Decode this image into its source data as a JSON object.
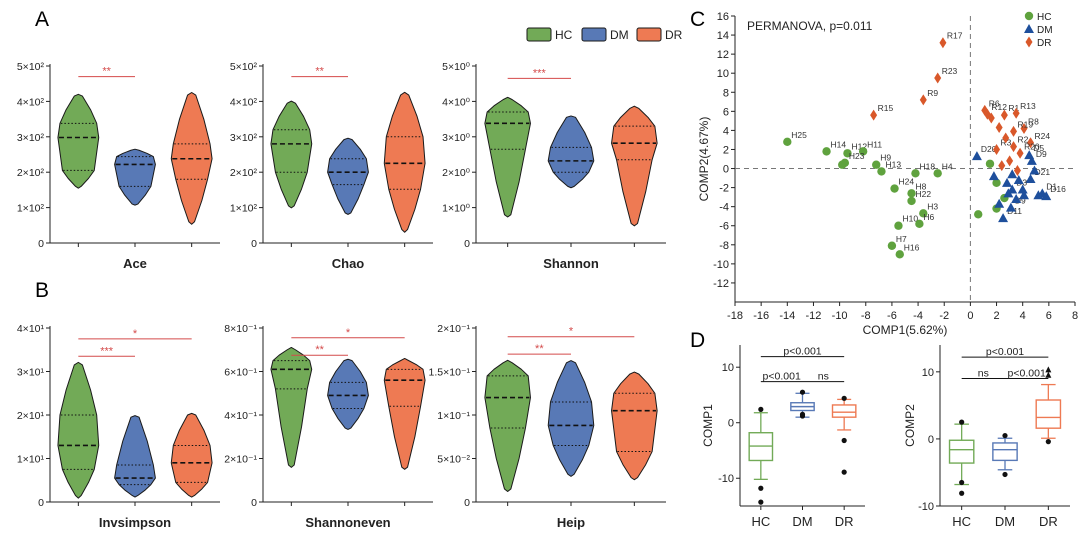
{
  "panel_letters": [
    "A",
    "B",
    "C",
    "D"
  ],
  "colors": {
    "HC": "#72aa57",
    "DM": "#5879b6",
    "DR": "#ee7a53",
    "HC_scatter": "#5fa23e",
    "DM_scatter": "#1e4f9c",
    "DR_scatter": "#d9582a",
    "sig": "#d44a4a"
  },
  "legend_A": [
    "HC",
    "DM",
    "DR"
  ],
  "chart_data": [
    {
      "type": "violin",
      "panel": "A",
      "title": "Ace",
      "yticks": [
        0,
        100,
        200,
        300,
        400,
        500
      ],
      "yticklabels": [
        "0",
        "1×10²",
        "2×10²",
        "3×10²",
        "4×10²",
        "5×10²"
      ],
      "ylim": [
        0,
        500
      ],
      "groups": [
        {
          "name": "HC",
          "min": 160,
          "q1": 205,
          "median": 298,
          "q3": 338,
          "max": 415
        },
        {
          "name": "DM",
          "min": 110,
          "q1": 160,
          "median": 222,
          "q3": 244,
          "max": 262
        },
        {
          "name": "DR",
          "min": 60,
          "q1": 180,
          "median": 238,
          "q3": 280,
          "max": 418
        }
      ],
      "significance": [
        {
          "from": 0,
          "to": 1,
          "label": "**",
          "y": 470
        }
      ]
    },
    {
      "type": "violin",
      "panel": "A",
      "title": "Chao",
      "yticks": [
        0,
        100,
        200,
        300,
        400,
        500
      ],
      "yticklabels": [
        "0",
        "1×10²",
        "2×10²",
        "3×10²",
        "4×10²",
        "5×10²"
      ],
      "ylim": [
        0,
        500
      ],
      "groups": [
        {
          "name": "HC",
          "min": 105,
          "q1": 200,
          "median": 280,
          "q3": 320,
          "max": 395
        },
        {
          "name": "DM",
          "min": 85,
          "q1": 165,
          "median": 200,
          "q3": 238,
          "max": 292
        },
        {
          "name": "DR",
          "min": 38,
          "q1": 152,
          "median": 225,
          "q3": 300,
          "max": 418
        }
      ],
      "significance": [
        {
          "from": 0,
          "to": 1,
          "label": "**",
          "y": 470
        }
      ]
    },
    {
      "type": "violin",
      "panel": "A",
      "title": "Shannon",
      "yticks": [
        0,
        1,
        2,
        3,
        4,
        5
      ],
      "yticklabels": [
        "0",
        "1×10⁰",
        "2×10⁰",
        "3×10⁰",
        "4×10⁰",
        "5×10⁰"
      ],
      "ylim": [
        0,
        5
      ],
      "groups": [
        {
          "name": "HC",
          "min": 0.8,
          "q1": 2.65,
          "median": 3.38,
          "q3": 3.7,
          "max": 4.05
        },
        {
          "name": "DM",
          "min": 1.6,
          "q1": 2.0,
          "median": 2.32,
          "q3": 2.7,
          "max": 3.55
        },
        {
          "name": "DR",
          "min": 0.55,
          "q1": 2.35,
          "median": 2.82,
          "q3": 3.3,
          "max": 3.8
        }
      ],
      "significance": [
        {
          "from": 0,
          "to": 1,
          "label": "***",
          "y": 4.65
        }
      ]
    },
    {
      "type": "violin",
      "panel": "B",
      "title": "Invsimpson",
      "yticks": [
        0,
        10,
        20,
        30,
        40
      ],
      "yticklabels": [
        "0",
        "1×10¹",
        "2×10¹",
        "3×10¹",
        "4×10¹"
      ],
      "ylim": [
        0,
        40
      ],
      "groups": [
        {
          "name": "HC",
          "min": 1.5,
          "q1": 7.5,
          "median": 13,
          "q3": 20,
          "max": 31.5
        },
        {
          "name": "DM",
          "min": 1.5,
          "q1": 4,
          "median": 5.5,
          "q3": 8.5,
          "max": 19.5
        },
        {
          "name": "DR",
          "min": 1.5,
          "q1": 4.5,
          "median": 9,
          "q3": 13,
          "max": 20
        }
      ],
      "significance": [
        {
          "from": 0,
          "to": 2,
          "label": "*",
          "y": 37.5
        },
        {
          "from": 0,
          "to": 1,
          "label": "***",
          "y": 33.5
        }
      ]
    },
    {
      "type": "violin",
      "panel": "B",
      "title": "Shannoneven",
      "yticks": [
        0,
        0.2,
        0.4,
        0.6,
        0.8
      ],
      "yticklabels": [
        "0",
        "2×10⁻¹",
        "4×10⁻¹",
        "6×10⁻¹",
        "8×10⁻¹"
      ],
      "ylim": [
        0,
        0.8
      ],
      "groups": [
        {
          "name": "HC",
          "min": 0.17,
          "q1": 0.52,
          "median": 0.61,
          "q3": 0.65,
          "max": 0.7
        },
        {
          "name": "DM",
          "min": 0.34,
          "q1": 0.43,
          "median": 0.49,
          "q3": 0.55,
          "max": 0.65
        },
        {
          "name": "DR",
          "min": 0.16,
          "q1": 0.44,
          "median": 0.56,
          "q3": 0.61,
          "max": 0.65
        }
      ],
      "significance": [
        {
          "from": 0,
          "to": 2,
          "label": "*",
          "y": 0.755
        },
        {
          "from": 0,
          "to": 1,
          "label": "**",
          "y": 0.675
        }
      ]
    },
    {
      "type": "violin",
      "panel": "B",
      "title": "Heip",
      "yticks": [
        0,
        0.05,
        0.1,
        0.15,
        0.2
      ],
      "yticklabels": [
        "0",
        "5×10⁻²",
        "1×10⁻¹",
        "1.5×10⁻¹",
        "2×10⁻¹"
      ],
      "ylim": [
        0,
        0.2
      ],
      "groups": [
        {
          "name": "HC",
          "min": 0.015,
          "q1": 0.085,
          "median": 0.12,
          "q3": 0.145,
          "max": 0.16
        },
        {
          "name": "DM",
          "min": 0.032,
          "q1": 0.065,
          "median": 0.088,
          "q3": 0.115,
          "max": 0.16
        },
        {
          "name": "DR",
          "min": 0.028,
          "q1": 0.058,
          "median": 0.105,
          "q3": 0.125,
          "max": 0.147
        }
      ],
      "significance": [
        {
          "from": 0,
          "to": 2,
          "label": "*",
          "y": 0.19
        },
        {
          "from": 0,
          "to": 1,
          "label": "**",
          "y": 0.17
        }
      ]
    },
    {
      "type": "scatter",
      "panel": "C",
      "annotation": "PERMANOVA, p=0.011",
      "xlabel": "COMP1(5.62%)",
      "ylabel": "COMP2(4.67%)",
      "xlim": [
        -18,
        8
      ],
      "ylim": [
        -14,
        16
      ],
      "xticks": [
        -18,
        -16,
        -14,
        -12,
        -10,
        -8,
        -6,
        -4,
        -2,
        0,
        2,
        4,
        6,
        8
      ],
      "yticks": [
        -12,
        -10,
        -8,
        -6,
        -4,
        -2,
        0,
        2,
        4,
        6,
        8,
        10,
        12,
        14,
        16
      ],
      "legend": [
        "HC",
        "DM",
        "DR"
      ],
      "series": [
        {
          "name": "HC",
          "points": [
            {
              "label": "H25",
              "x": -14,
              "y": 2.8
            },
            {
              "label": "H14",
              "x": -11,
              "y": 1.8
            },
            {
              "label": "H12",
              "x": -9.4,
              "y": 1.6
            },
            {
              "label": "H11",
              "x": -8.2,
              "y": 1.8
            },
            {
              "label": "H23",
              "x": -9.6,
              "y": 0.6
            },
            {
              "label": "H9",
              "x": -7.2,
              "y": 0.4
            },
            {
              "label": "H13",
              "x": -6.8,
              "y": -0.3
            },
            {
              "label": "H24",
              "x": -5.8,
              "y": -2.1
            },
            {
              "label": "H18",
              "x": -4.2,
              "y": -0.5
            },
            {
              "label": "H4",
              "x": -2.5,
              "y": -0.5
            },
            {
              "label": "H8",
              "x": -4.5,
              "y": -2.6
            },
            {
              "label": "H22",
              "x": -4.5,
              "y": -3.4
            },
            {
              "label": "H3",
              "x": -3.6,
              "y": -4.7
            },
            {
              "label": "H10",
              "x": -5.5,
              "y": -6
            },
            {
              "label": "H6",
              "x": -3.9,
              "y": -5.8
            },
            {
              "label": "H7",
              "x": -6,
              "y": -8.1
            },
            {
              "label": "H16",
              "x": -5.4,
              "y": -9
            },
            {
              "label": "",
              "x": -9.8,
              "y": 0.4
            },
            {
              "label": "",
              "x": 2.0,
              "y": -1.5
            },
            {
              "label": "",
              "x": 2.6,
              "y": -3.1
            },
            {
              "label": "",
              "x": 0.6,
              "y": -4.8
            },
            {
              "label": "",
              "x": 2.0,
              "y": -4.2
            },
            {
              "label": "",
              "x": 1.5,
              "y": 0.5
            }
          ]
        },
        {
          "name": "DM",
          "points": [
            {
              "label": "D20",
              "x": 0.5,
              "y": 1.3
            },
            {
              "label": "D5",
              "x": 4.5,
              "y": 1.4
            },
            {
              "label": "D9",
              "x": 4.7,
              "y": 0.8
            },
            {
              "label": "D21",
              "x": 4.6,
              "y": -1.1
            },
            {
              "label": "D1",
              "x": 5.5,
              "y": -2.6
            },
            {
              "label": "D16",
              "x": 5.8,
              "y": -2.9
            },
            {
              "label": "D3",
              "x": 3.2,
              "y": -2.2
            },
            {
              "label": "D11",
              "x": 2.5,
              "y": -5.2
            },
            {
              "label": "D9",
              "x": 3.1,
              "y": -4.1
            },
            {
              "label": "",
              "x": 1.8,
              "y": -0.8
            },
            {
              "label": "",
              "x": 2.8,
              "y": -1.5
            },
            {
              "label": "",
              "x": 3.2,
              "y": -0.6
            },
            {
              "label": "",
              "x": 4,
              "y": -2.2
            },
            {
              "label": "",
              "x": 3.5,
              "y": -3.2
            },
            {
              "label": "",
              "x": 2.2,
              "y": -3.7
            },
            {
              "label": "",
              "x": 4.9,
              "y": -0.2
            },
            {
              "label": "",
              "x": 5.2,
              "y": -2.8
            },
            {
              "label": "",
              "x": 2.9,
              "y": -2.6
            },
            {
              "label": "",
              "x": 4.1,
              "y": -2.8
            },
            {
              "label": "",
              "x": 3.7,
              "y": -1.2
            }
          ]
        },
        {
          "name": "DR",
          "points": [
            {
              "label": "R17",
              "x": -2.1,
              "y": 13.2
            },
            {
              "label": "R23",
              "x": -2.5,
              "y": 9.5
            },
            {
              "label": "R9",
              "x": -3.6,
              "y": 7.2
            },
            {
              "label": "R15",
              "x": -7.4,
              "y": 5.6
            },
            {
              "label": "R6",
              "x": 1.1,
              "y": 6.1
            },
            {
              "label": "R12",
              "x": 1.3,
              "y": 5.7
            },
            {
              "label": "R1",
              "x": 2.6,
              "y": 5.6
            },
            {
              "label": "R13",
              "x": 3.5,
              "y": 5.8
            },
            {
              "label": "R8",
              "x": 4.1,
              "y": 4.2
            },
            {
              "label": "R19",
              "x": 3.3,
              "y": 3.9
            },
            {
              "label": "R24",
              "x": 4.6,
              "y": 2.7
            },
            {
              "label": "R2",
              "x": 3.3,
              "y": 2.3
            },
            {
              "label": "R20",
              "x": 3.8,
              "y": 1.6
            },
            {
              "label": "R3",
              "x": 2,
              "y": 2
            },
            {
              "label": "",
              "x": 1.6,
              "y": 5.3
            },
            {
              "label": "",
              "x": 2.2,
              "y": 4.3
            },
            {
              "label": "",
              "x": 2.7,
              "y": 3.2
            },
            {
              "label": "",
              "x": 3,
              "y": 0.8
            },
            {
              "label": "",
              "x": 2.4,
              "y": 0.3
            },
            {
              "label": "",
              "x": 3.6,
              "y": -0.2
            }
          ]
        }
      ]
    },
    {
      "type": "box",
      "panel": "D",
      "ylabel": "COMP1",
      "ylim": [
        -15,
        14
      ],
      "yticks": [
        -10,
        0,
        10
      ],
      "yticklabels": [
        "-10",
        "0",
        "10"
      ],
      "categories": [
        "HC",
        "DM",
        "DR"
      ],
      "groups": [
        {
          "name": "HC",
          "whisker_low": -10.2,
          "q1": -6.8,
          "median": -4.2,
          "q3": -1.8,
          "whisker_high": 1.8,
          "outliers": [
            -11.8,
            -14.3,
            2.4
          ]
        },
        {
          "name": "DM",
          "whisker_low": 1.0,
          "q1": 2.2,
          "median": 2.9,
          "q3": 3.6,
          "whisker_high": 5.3,
          "outliers": [
            1.2,
            1.5,
            5.5
          ]
        },
        {
          "name": "DR",
          "whisker_low": -1.3,
          "q1": 1.0,
          "median": 1.9,
          "q3": 3.2,
          "whisker_high": 4.2,
          "outliers": [
            -3.2,
            -8.9,
            4.4
          ]
        }
      ],
      "significance": [
        {
          "from": 0,
          "to": 2,
          "label": "p<0.001",
          "y": 11.9
        },
        {
          "from": 0,
          "to": 1,
          "label": "p<0.001",
          "y": 7.4
        },
        {
          "from": 1,
          "to": 2,
          "label": "ns",
          "y": 7.4
        }
      ]
    },
    {
      "type": "box",
      "panel": "D",
      "ylabel": "COMP2",
      "ylim": [
        -10,
        14
      ],
      "yticks": [
        -10,
        0,
        10
      ],
      "yticklabels": [
        "-10",
        "0",
        "10"
      ],
      "categories": [
        "HC",
        "DM",
        "DR"
      ],
      "groups": [
        {
          "name": "HC",
          "whisker_low": -6.8,
          "q1": -3.6,
          "median": -1.6,
          "q3": -0.2,
          "whisker_high": 2.2,
          "outliers": [
            -8.1,
            -6.5,
            2.5
          ]
        },
        {
          "name": "DM",
          "whisker_low": -4.6,
          "q1": -3.2,
          "median": -1.6,
          "q3": -0.6,
          "whisker_high": 0.1,
          "outliers": [
            -5.3,
            0.5
          ]
        },
        {
          "name": "DR",
          "whisker_low": 0.1,
          "q1": 1.6,
          "median": 3.2,
          "q3": 5.8,
          "whisker_high": 8.1,
          "outliers": [
            -0.4,
            9.5,
            10.3
          ]
        }
      ],
      "significance": [
        {
          "from": 0,
          "to": 2,
          "label": "p<0.001",
          "y": 12.2
        },
        {
          "from": 1,
          "to": 2,
          "label": "p<0.001",
          "y": 9.0
        },
        {
          "from": 0,
          "to": 1,
          "label": "ns",
          "y": 9.0
        }
      ]
    }
  ]
}
